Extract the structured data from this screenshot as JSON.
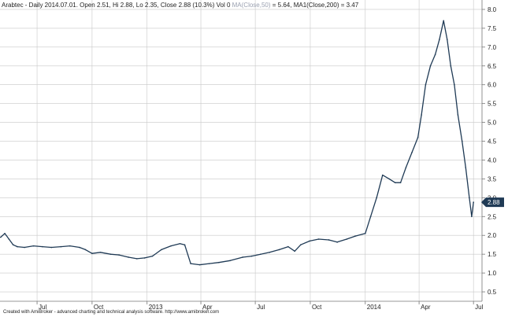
{
  "header": {
    "text": "Arabtec - Daily 2014.07.01. Open 2.51, Hi 2.88, Lo 2.35, Close 2.88 (10.3%) Vol 0",
    "ma50": "MA(Close,50)",
    "ma50_value": " = 5.64,",
    "ma200": " MA1(Close,200) = 3.47"
  },
  "footer": "Created with AmiBroker - advanced charting and technical analysis software. http://www.amibroker.com",
  "chart_data": {
    "type": "line",
    "title": "Arabtec - Daily",
    "ylim": [
      0.25,
      8.25
    ],
    "y_ticks": [
      0.5,
      1.0,
      1.5,
      2.0,
      2.5,
      3.0,
      3.5,
      4.0,
      4.5,
      5.0,
      5.5,
      6.0,
      6.5,
      7.0,
      7.5,
      8.0
    ],
    "y_tick_labels": [
      "0.5",
      "1.0",
      "1.5",
      "2.0",
      "2.5",
      "3.0",
      "3.5",
      "4.0",
      "4.5",
      "5.0",
      "5.5",
      "6.0",
      "6.5",
      "7.0",
      "7.5",
      "8.0"
    ],
    "x_tick_labels": [
      "Jul",
      "Oct",
      "2013",
      "Apr",
      "Jul",
      "Oct",
      "2014",
      "Apr",
      "Jul"
    ],
    "x_tick_dates": [
      "2012-07-01",
      "2012-10-01",
      "2013-01-01",
      "2013-04-01",
      "2013-07-01",
      "2013-10-01",
      "2014-01-01",
      "2014-04-01",
      "2014-07-01"
    ],
    "x_range": [
      "2012-04-30",
      "2014-07-10"
    ],
    "grid": true,
    "last_value_label": "2.88",
    "series": [
      {
        "values": [
          [
            "2012-05-01",
            1.95
          ],
          [
            "2012-05-08",
            2.05
          ],
          [
            "2012-05-15",
            1.9
          ],
          [
            "2012-05-22",
            1.75
          ],
          [
            "2012-05-29",
            1.7
          ],
          [
            "2012-06-10",
            1.68
          ],
          [
            "2012-06-25",
            1.72
          ],
          [
            "2012-07-10",
            1.7
          ],
          [
            "2012-07-25",
            1.68
          ],
          [
            "2012-08-10",
            1.7
          ],
          [
            "2012-08-25",
            1.72
          ],
          [
            "2012-09-10",
            1.68
          ],
          [
            "2012-09-20",
            1.62
          ],
          [
            "2012-10-01",
            1.52
          ],
          [
            "2012-10-15",
            1.55
          ],
          [
            "2012-11-01",
            1.5
          ],
          [
            "2012-11-15",
            1.48
          ],
          [
            "2012-12-01",
            1.42
          ],
          [
            "2012-12-15",
            1.38
          ],
          [
            "2012-12-28",
            1.4
          ],
          [
            "2013-01-10",
            1.45
          ],
          [
            "2013-01-25",
            1.62
          ],
          [
            "2013-02-10",
            1.72
          ],
          [
            "2013-02-25",
            1.78
          ],
          [
            "2013-03-05",
            1.75
          ],
          [
            "2013-03-15",
            1.25
          ],
          [
            "2013-03-30",
            1.22
          ],
          [
            "2013-04-15",
            1.25
          ],
          [
            "2013-05-01",
            1.28
          ],
          [
            "2013-05-20",
            1.33
          ],
          [
            "2013-06-10",
            1.42
          ],
          [
            "2013-06-25",
            1.45
          ],
          [
            "2013-07-10",
            1.5
          ],
          [
            "2013-07-25",
            1.55
          ],
          [
            "2013-08-10",
            1.62
          ],
          [
            "2013-08-25",
            1.7
          ],
          [
            "2013-09-05",
            1.58
          ],
          [
            "2013-09-15",
            1.75
          ],
          [
            "2013-09-30",
            1.85
          ],
          [
            "2013-10-15",
            1.9
          ],
          [
            "2013-11-01",
            1.88
          ],
          [
            "2013-11-15",
            1.82
          ],
          [
            "2013-12-01",
            1.9
          ],
          [
            "2013-12-15",
            1.98
          ],
          [
            "2014-01-01",
            2.05
          ],
          [
            "2014-01-10",
            2.5
          ],
          [
            "2014-01-20",
            3.0
          ],
          [
            "2014-01-30",
            3.6
          ],
          [
            "2014-02-10",
            3.5
          ],
          [
            "2014-02-20",
            3.4
          ],
          [
            "2014-03-01",
            3.4
          ],
          [
            "2014-03-10",
            3.8
          ],
          [
            "2014-03-20",
            4.2
          ],
          [
            "2014-03-30",
            4.6
          ],
          [
            "2014-04-05",
            5.2
          ],
          [
            "2014-04-12",
            6.0
          ],
          [
            "2014-04-20",
            6.5
          ],
          [
            "2014-04-28",
            6.8
          ],
          [
            "2014-05-05",
            7.2
          ],
          [
            "2014-05-12",
            7.7
          ],
          [
            "2014-05-18",
            7.2
          ],
          [
            "2014-05-24",
            6.5
          ],
          [
            "2014-05-30",
            6.0
          ],
          [
            "2014-06-05",
            5.2
          ],
          [
            "2014-06-12",
            4.5
          ],
          [
            "2014-06-18",
            3.8
          ],
          [
            "2014-06-24",
            3.0
          ],
          [
            "2014-06-28",
            2.5
          ],
          [
            "2014-07-01",
            2.88
          ]
        ]
      }
    ]
  }
}
